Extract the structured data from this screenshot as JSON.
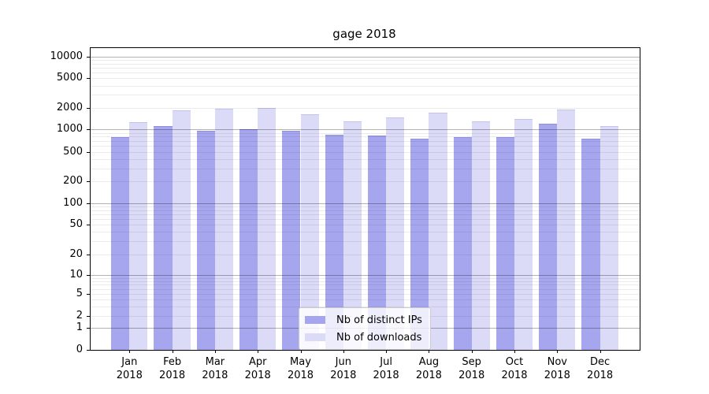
{
  "title": "gage 2018",
  "chart_data": {
    "type": "bar",
    "title": "gage 2018",
    "scale": "symlog",
    "grid": true,
    "legend_position": "lower center",
    "categories": [
      "Jan",
      "Feb",
      "Mar",
      "Apr",
      "May",
      "Jun",
      "Jul",
      "Aug",
      "Sep",
      "Oct",
      "Nov",
      "Dec"
    ],
    "year_label": "2018",
    "yticks": [
      0,
      1,
      2,
      5,
      10,
      20,
      50,
      100,
      200,
      500,
      1000,
      2000,
      5000,
      10000
    ],
    "ylim": [
      0,
      13000
    ],
    "series": [
      {
        "name": "Nb of distinct IPs",
        "color": "#a6a6ee",
        "edge_color": "#8f8fe0",
        "values": [
          780,
          1130,
          950,
          1000,
          960,
          840,
          820,
          760,
          790,
          790,
          1200,
          750
        ]
      },
      {
        "name": "Nb of downloads",
        "color": "#dbdbf8",
        "edge_color": "#c3c3ef",
        "values": [
          1260,
          1870,
          1960,
          2010,
          1620,
          1290,
          1490,
          1720,
          1290,
          1410,
          1880,
          1120
        ]
      }
    ]
  },
  "colors": {
    "major_grid": "#b3b3b3",
    "minor_grid": "#e8e8e8",
    "spine": "#000000",
    "background": "#ffffff"
  }
}
